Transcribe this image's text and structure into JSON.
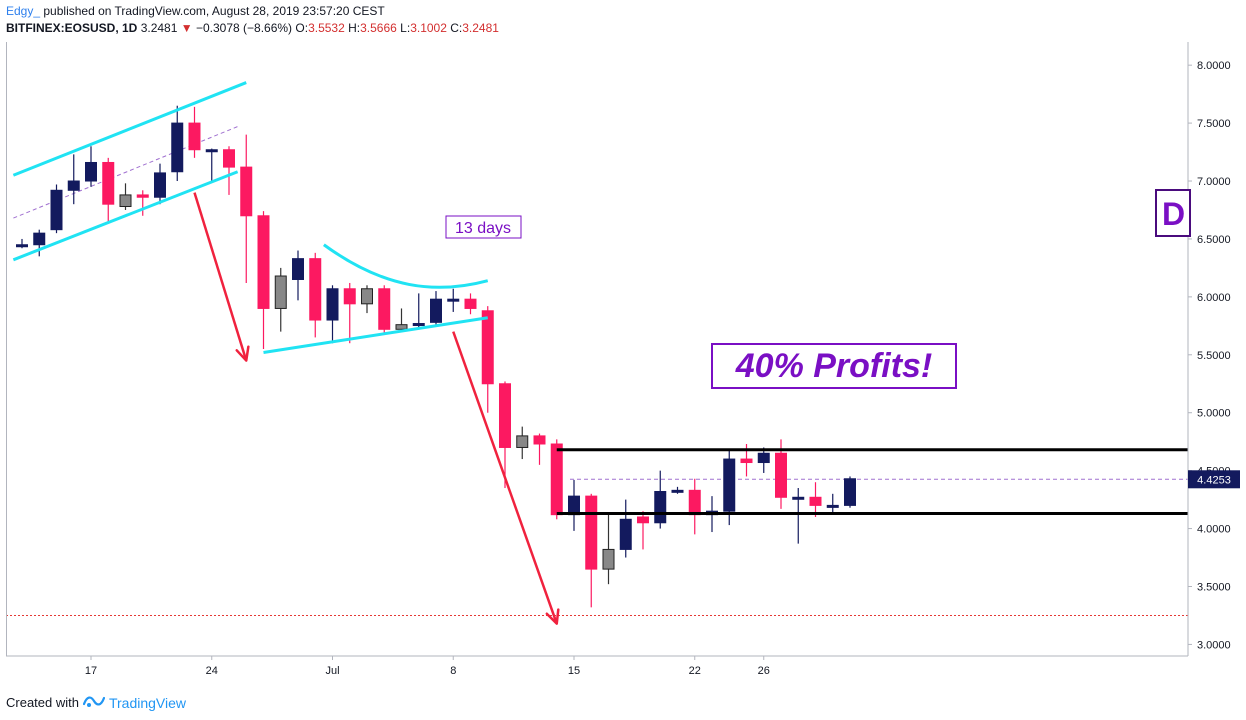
{
  "header": {
    "author": "Edgy_",
    "published": "published on TradingView.com, August 28, 2019 23:57:20 CEST",
    "symbol": "BITFINEX:EOSUSD, 1D",
    "last": "3.2481",
    "change_arrow": "▼",
    "change": "−0.3078 (−8.66%)",
    "o_label": "O:",
    "o_value": "3.5532",
    "h_label": "H:",
    "h_value": "3.5666",
    "l_label": "L:",
    "l_value": "3.1002",
    "c_label": "C:",
    "c_value": "3.2481"
  },
  "footer": {
    "created_with": "Created with",
    "brand": "TradingView"
  },
  "annotations": {
    "days_label": "13 days",
    "profit_label": "40% Profits!",
    "partial_box_label": "D",
    "price_tag": "4.4253"
  },
  "colors": {
    "up": "#131a5e",
    "down": "#fc1961",
    "doji": "#888888",
    "channel": "#20e3f3",
    "arrow": "#f0223e",
    "purple": "#7a0fc4",
    "support_dotted": "#e53935",
    "dashed_mid": "#a070d0"
  },
  "chart_data": {
    "type": "candlestick",
    "symbol": "BITFINEX:EOSUSD",
    "interval": "1D",
    "ylim": [
      2.9,
      8.2
    ],
    "y_ticks": [
      3.0,
      3.5,
      4.0,
      4.5,
      5.0,
      5.5,
      6.0,
      6.5,
      7.0,
      7.5,
      8.0
    ],
    "y_tick_labels": [
      "3.0000",
      "3.5000",
      "4.0000",
      "4.5000",
      "5.0000",
      "5.5000",
      "6.0000",
      "6.5000",
      "7.0000",
      "7.5000",
      "8.0000"
    ],
    "x_tick_labels": [
      {
        "label": "17",
        "index": 4
      },
      {
        "label": "24",
        "index": 11
      },
      {
        "label": "Jul",
        "index": 18
      },
      {
        "label": "8",
        "index": 25
      },
      {
        "label": "15",
        "index": 32
      },
      {
        "label": "22",
        "index": 39
      },
      {
        "label": "26",
        "index": 43
      }
    ],
    "candles": [
      {
        "o": 6.45,
        "h": 6.5,
        "l": 6.42,
        "c": 6.45
      },
      {
        "o": 6.45,
        "h": 6.58,
        "l": 6.35,
        "c": 6.55
      },
      {
        "o": 6.58,
        "h": 6.97,
        "l": 6.55,
        "c": 6.92
      },
      {
        "o": 6.92,
        "h": 7.23,
        "l": 6.8,
        "c": 7.0
      },
      {
        "o": 7.0,
        "h": 7.3,
        "l": 6.95,
        "c": 7.16
      },
      {
        "o": 7.16,
        "h": 7.2,
        "l": 6.65,
        "c": 6.8
      },
      {
        "o": 6.78,
        "h": 6.98,
        "l": 6.75,
        "c": 6.88
      },
      {
        "o": 6.88,
        "h": 6.92,
        "l": 6.7,
        "c": 6.86
      },
      {
        "o": 6.86,
        "h": 7.15,
        "l": 6.8,
        "c": 7.07
      },
      {
        "o": 7.08,
        "h": 7.65,
        "l": 7.0,
        "c": 7.5
      },
      {
        "o": 7.5,
        "h": 7.64,
        "l": 7.2,
        "c": 7.27
      },
      {
        "o": 7.27,
        "h": 7.28,
        "l": 7.0,
        "c": 7.27
      },
      {
        "o": 7.27,
        "h": 7.3,
        "l": 6.88,
        "c": 7.12
      },
      {
        "o": 7.12,
        "h": 7.4,
        "l": 6.12,
        "c": 6.7
      },
      {
        "o": 6.7,
        "h": 6.74,
        "l": 5.55,
        "c": 5.9
      },
      {
        "o": 5.9,
        "h": 6.25,
        "l": 5.7,
        "c": 6.18
      },
      {
        "o": 6.15,
        "h": 6.4,
        "l": 5.97,
        "c": 6.33
      },
      {
        "o": 6.33,
        "h": 6.38,
        "l": 5.65,
        "c": 5.8
      },
      {
        "o": 5.8,
        "h": 6.1,
        "l": 5.6,
        "c": 6.07
      },
      {
        "o": 6.07,
        "h": 6.12,
        "l": 5.6,
        "c": 5.94
      },
      {
        "o": 5.94,
        "h": 6.1,
        "l": 5.86,
        "c": 6.07
      },
      {
        "o": 6.07,
        "h": 6.1,
        "l": 5.68,
        "c": 5.72
      },
      {
        "o": 5.72,
        "h": 5.9,
        "l": 5.7,
        "c": 5.76
      },
      {
        "o": 5.76,
        "h": 6.03,
        "l": 5.72,
        "c": 5.77
      },
      {
        "o": 5.78,
        "h": 6.05,
        "l": 5.75,
        "c": 5.98
      },
      {
        "o": 5.97,
        "h": 6.07,
        "l": 5.87,
        "c": 5.98
      },
      {
        "o": 5.98,
        "h": 6.03,
        "l": 5.85,
        "c": 5.9
      },
      {
        "o": 5.88,
        "h": 5.92,
        "l": 5.0,
        "c": 5.25
      },
      {
        "o": 5.25,
        "h": 5.27,
        "l": 4.35,
        "c": 4.7
      },
      {
        "o": 4.7,
        "h": 4.88,
        "l": 4.6,
        "c": 4.8
      },
      {
        "o": 4.8,
        "h": 4.82,
        "l": 4.55,
        "c": 4.73
      },
      {
        "o": 4.73,
        "h": 4.77,
        "l": 4.08,
        "c": 4.12
      },
      {
        "o": 4.12,
        "h": 4.42,
        "l": 3.98,
        "c": 4.28
      },
      {
        "o": 4.28,
        "h": 4.3,
        "l": 3.32,
        "c": 3.65
      },
      {
        "o": 3.65,
        "h": 4.12,
        "l": 3.52,
        "c": 3.82
      },
      {
        "o": 3.82,
        "h": 4.25,
        "l": 3.75,
        "c": 4.08
      },
      {
        "o": 4.1,
        "h": 4.15,
        "l": 3.82,
        "c": 4.05
      },
      {
        "o": 4.05,
        "h": 4.5,
        "l": 4.0,
        "c": 4.32
      },
      {
        "o": 4.32,
        "h": 4.36,
        "l": 4.3,
        "c": 4.33
      },
      {
        "o": 4.33,
        "h": 4.43,
        "l": 3.95,
        "c": 4.12
      },
      {
        "o": 4.12,
        "h": 4.28,
        "l": 3.97,
        "c": 4.15
      },
      {
        "o": 4.15,
        "h": 4.67,
        "l": 4.03,
        "c": 4.6
      },
      {
        "o": 4.6,
        "h": 4.73,
        "l": 4.45,
        "c": 4.57
      },
      {
        "o": 4.57,
        "h": 4.7,
        "l": 4.48,
        "c": 4.65
      },
      {
        "o": 4.65,
        "h": 4.77,
        "l": 4.17,
        "c": 4.27
      },
      {
        "o": 4.27,
        "h": 4.35,
        "l": 3.87,
        "c": 4.27
      },
      {
        "o": 4.27,
        "h": 4.4,
        "l": 4.1,
        "c": 4.2
      },
      {
        "o": 4.2,
        "h": 4.3,
        "l": 4.12,
        "c": 4.2
      },
      {
        "o": 4.2,
        "h": 4.45,
        "l": 4.18,
        "c": 4.43
      }
    ],
    "last_price": 4.4253,
    "resistance_level": 4.68,
    "support_level": 4.13,
    "target_level": 3.25,
    "channel_upper": [
      {
        "i": -0.5,
        "y": 7.05
      },
      {
        "i": 13,
        "y": 7.85
      }
    ],
    "channel_lower": [
      {
        "i": -0.5,
        "y": 6.32
      },
      {
        "i": 12.5,
        "y": 7.08
      }
    ],
    "channel_mid": [
      {
        "i": -0.5,
        "y": 6.68
      },
      {
        "i": 12.5,
        "y": 7.47
      }
    ],
    "wedge_lower": [
      {
        "i": 14,
        "y": 5.52
      },
      {
        "i": 27,
        "y": 5.82
      }
    ],
    "wedge_upper_curve": [
      {
        "i": 17.5,
        "y": 6.45
      },
      {
        "i": 21,
        "y": 6.07
      },
      {
        "i": 24,
        "y": 6.02
      },
      {
        "i": 27,
        "y": 6.14
      }
    ],
    "arrows": [
      {
        "from": {
          "i": 10,
          "y": 6.9
        },
        "to": {
          "i": 13,
          "y": 5.45
        }
      },
      {
        "from": {
          "i": 25,
          "y": 5.7
        },
        "to": {
          "i": 31,
          "y": 3.18
        }
      }
    ]
  }
}
